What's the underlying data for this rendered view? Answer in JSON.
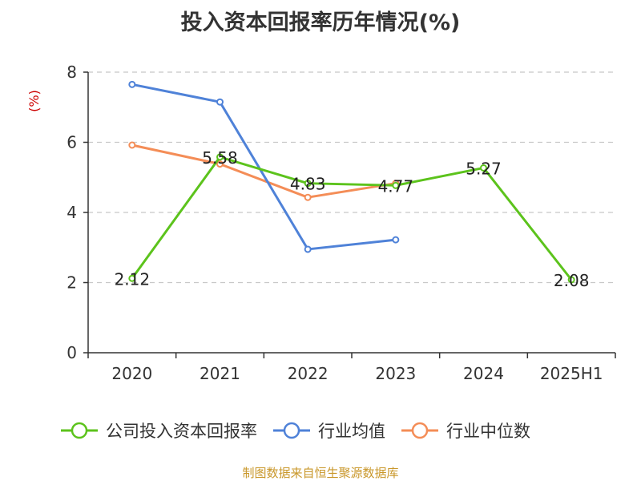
{
  "chart_data": {
    "type": "line",
    "title": "投入资本回报率历年情况(%)",
    "ylabel": "(%)",
    "xlabel": "",
    "categories": [
      "2020",
      "2021",
      "2022",
      "2023",
      "2024",
      "2025H1"
    ],
    "ylim": [
      0,
      8
    ],
    "yticks": [
      0,
      2,
      4,
      6,
      8
    ],
    "grid": true,
    "legend_position": "bottom",
    "series": [
      {
        "name": "公司投入资本回报率",
        "color": "#5cc31c",
        "values": [
          2.12,
          5.58,
          4.83,
          4.77,
          5.27,
          2.08
        ],
        "show_labels": true
      },
      {
        "name": "行业均值",
        "color": "#4f82d8",
        "values": [
          7.65,
          7.15,
          2.95,
          3.22,
          null,
          null
        ],
        "show_labels": false
      },
      {
        "name": "行业中位数",
        "color": "#f48d57",
        "values": [
          5.92,
          5.38,
          4.43,
          4.83,
          null,
          null
        ],
        "show_labels": false
      }
    ]
  },
  "source_text": "制图数据来自恒生聚源数据库"
}
